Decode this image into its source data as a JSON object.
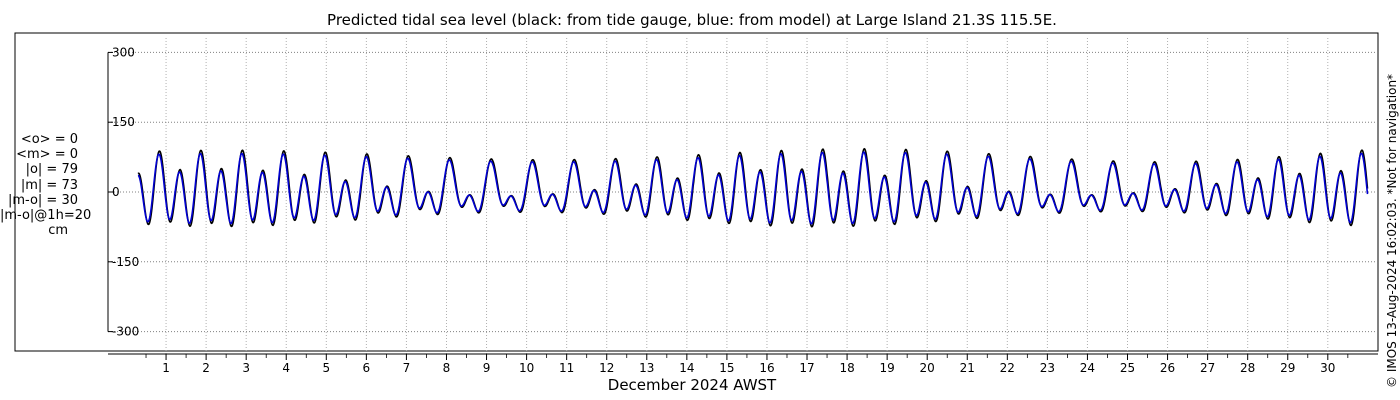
{
  "chart_data": {
    "type": "line",
    "title": "Predicted tidal sea level (black: from tide gauge, blue: from model) at Large Island 21.3S 115.5E.",
    "xlabel": "December 2024 AWST",
    "ylabel": "",
    "x_tick_labels": [
      "1",
      "2",
      "3",
      "4",
      "5",
      "6",
      "7",
      "8",
      "9",
      "10",
      "11",
      "12",
      "13",
      "14",
      "15",
      "16",
      "17",
      "18",
      "19",
      "20",
      "21",
      "22",
      "23",
      "24",
      "25",
      "26",
      "27",
      "28",
      "29",
      "30"
    ],
    "y_ticks": [
      300,
      150,
      0,
      -150,
      -300
    ],
    "y_tick_labels": [
      "300",
      "150",
      "0",
      "-150",
      "-300"
    ],
    "ylim": [
      -300,
      300
    ],
    "xlim_days": [
      0,
      31
    ],
    "grid": true,
    "series": [
      {
        "color": "#000000",
        "semidiurnal_amp_cm": 70,
        "diurnal_amp_cm": 40,
        "semidiurnal_phase_deg": 140,
        "diurnal_phase_deg": 60
      },
      {
        "color": "#0000d0",
        "semidiurnal_amp_cm": 64,
        "diurnal_amp_cm": 38,
        "semidiurnal_phase_deg": 150,
        "diurnal_phase_deg": 65
      }
    ]
  },
  "stats": {
    "lines": [
      "<o> = 0",
      "<m> = 0",
      "|o| = 79",
      "|m| = 73",
      "|m-o| = 30",
      "|m-o|@1h=20"
    ],
    "unit": "cm"
  },
  "credit": "© IMOS 13-Aug-2024 16:02:03. *Not for navigation*"
}
